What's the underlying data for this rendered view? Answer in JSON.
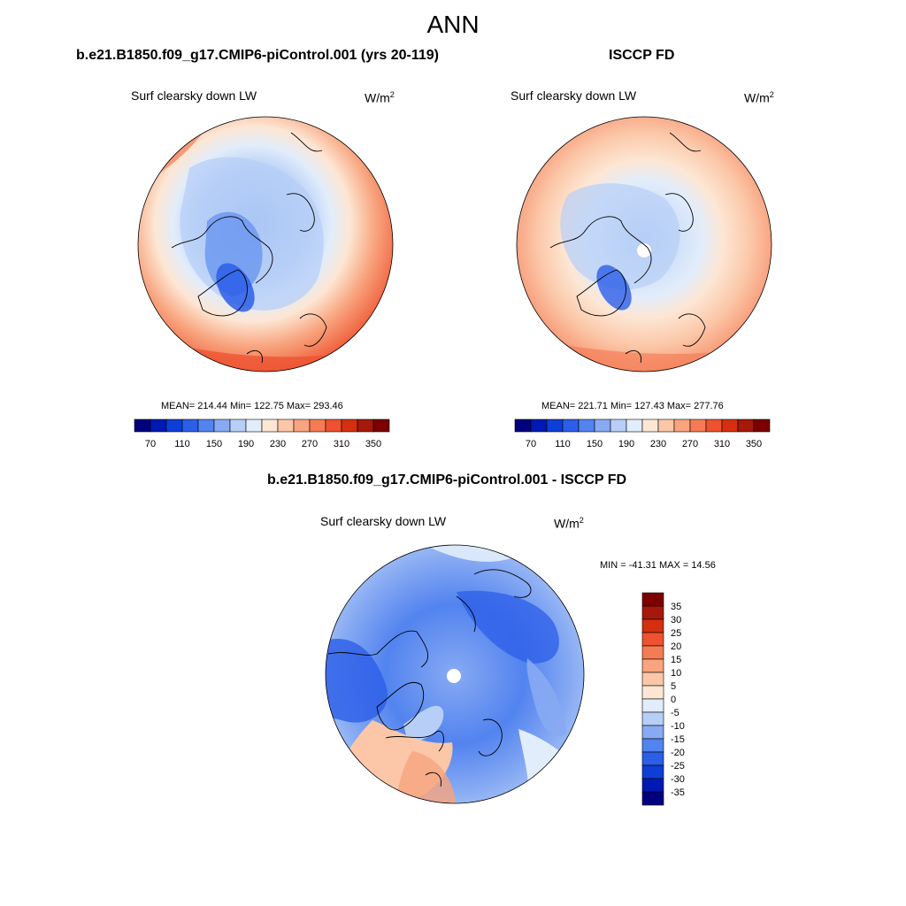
{
  "page": {
    "title": "ANN"
  },
  "panels": {
    "model": {
      "case_title": "b.e21.B1850.f09_g17.CMIP6-piControl.001 (yrs 20-119)",
      "variable": "Surf clearsky down LW",
      "units": "W/m",
      "units_exp": "2",
      "stats": "MEAN= 214.44  Min= 122.75  Max= 293.46"
    },
    "obs": {
      "case_title": "ISCCP FD",
      "variable": "Surf clearsky down LW",
      "units": "W/m",
      "units_exp": "2",
      "stats": "MEAN= 221.71  Min= 127.43  Max= 277.76"
    },
    "diff": {
      "case_title": "b.e21.B1850.f09_g17.CMIP6-piControl.001 - ISCCP FD",
      "variable": "Surf clearsky down LW",
      "units": "W/m",
      "units_exp": "2",
      "stats": "MIN = -41.31 MAX =  14.56"
    }
  },
  "colorbars": {
    "main": {
      "colors": [
        "#00007f",
        "#0019b2",
        "#0d3fd6",
        "#2c5ee8",
        "#5283ef",
        "#87aaf3",
        "#b7cff7",
        "#e2edfb",
        "#fde6d3",
        "#fbc7a8",
        "#f8a47e",
        "#f57b54",
        "#ee5230",
        "#d4300f",
        "#a6180a",
        "#7c0000"
      ],
      "tick_labels": [
        "70",
        "110",
        "150",
        "190",
        "230",
        "270",
        "310",
        "350"
      ]
    },
    "diff": {
      "colors": [
        "#7c0000",
        "#a6180a",
        "#d4300f",
        "#ee5230",
        "#f57b54",
        "#f8a47e",
        "#fbc7a8",
        "#fde6d3",
        "#e2edfb",
        "#b7cff7",
        "#87aaf3",
        "#5283ef",
        "#2c5ee8",
        "#0d3fd6",
        "#0019b2",
        "#00007f"
      ],
      "tick_labels": [
        "35",
        "30",
        "25",
        "20",
        "15",
        "10",
        "5",
        "0",
        "-5",
        "-10",
        "-15",
        "-20",
        "-25",
        "-30",
        "-35"
      ]
    }
  },
  "map_fill": {
    "land_outline": "#000000",
    "missing": "#ffffff"
  }
}
